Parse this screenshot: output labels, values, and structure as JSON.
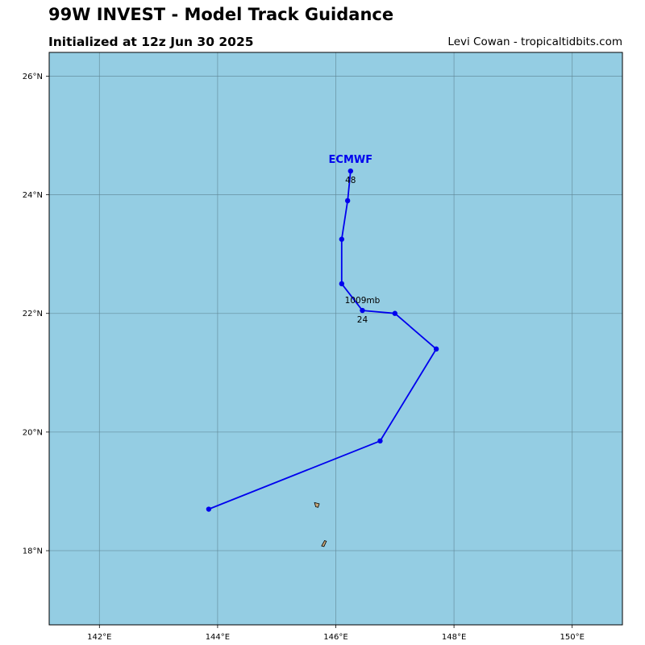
{
  "header": {
    "title": "99W INVEST - Model Track Guidance",
    "subtitle": "Initialized at 12z Jun 30 2025",
    "credit": "Levi Cowan - tropicaltidbits.com"
  },
  "map": {
    "ocean_color": "#94cde3",
    "land_color": "#c9a87a",
    "grid_color": "#5f8694",
    "lon_range": [
      141.15,
      150.85
    ],
    "lat_range": [
      16.75,
      26.4
    ],
    "lon_ticks": [
      142,
      144,
      146,
      148,
      150
    ],
    "lon_tick_labels": [
      "142°E",
      "144°E",
      "146°E",
      "148°E",
      "150°E"
    ],
    "lat_ticks": [
      18,
      20,
      22,
      24,
      26
    ],
    "lat_tick_labels": [
      "18°N",
      "20°N",
      "22°N",
      "24°N",
      "26°N"
    ],
    "islands": [
      {
        "name": "Anatahan",
        "points": [
          [
            145.64,
            18.81
          ],
          [
            145.72,
            18.79
          ],
          [
            145.7,
            18.73
          ],
          [
            145.66,
            18.74
          ]
        ]
      },
      {
        "name": "Sarigan",
        "points": [
          [
            145.76,
            18.08
          ],
          [
            145.81,
            18.17
          ],
          [
            145.84,
            18.16
          ],
          [
            145.8,
            18.07
          ]
        ]
      }
    ]
  },
  "tracks": [
    {
      "model": "ECMWF",
      "color": "#0000ee",
      "points": [
        {
          "lon": 143.85,
          "lat": 18.7
        },
        {
          "lon": 146.75,
          "lat": 19.85
        },
        {
          "lon": 147.7,
          "lat": 21.4
        },
        {
          "lon": 147.0,
          "lat": 22.0
        },
        {
          "lon": 146.45,
          "lat": 22.05
        },
        {
          "lon": 146.1,
          "lat": 22.5
        },
        {
          "lon": 146.1,
          "lat": 23.25
        },
        {
          "lon": 146.2,
          "lat": 23.9
        },
        {
          "lon": 146.25,
          "lat": 24.4
        }
      ],
      "annotations": [
        {
          "text": "1009mb",
          "lon": 146.45,
          "lat": 22.05,
          "position": "above"
        },
        {
          "text": "24",
          "lon": 146.45,
          "lat": 22.05,
          "position": "below"
        },
        {
          "text": "48",
          "lon": 146.25,
          "lat": 24.4,
          "position": "below"
        }
      ]
    }
  ]
}
